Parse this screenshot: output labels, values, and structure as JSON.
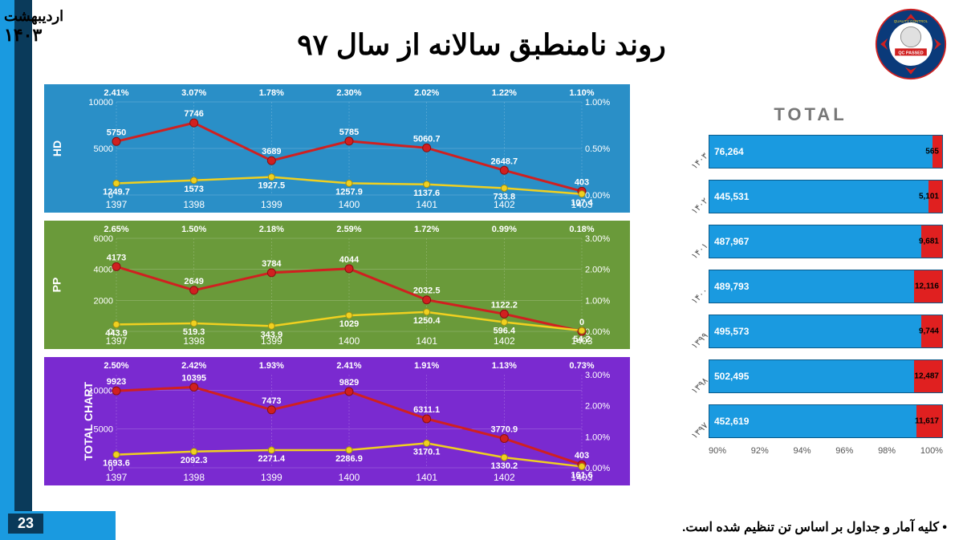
{
  "date_month": "اردیبهشت",
  "date_year": "۱۴۰۳",
  "title": "روند نامنطبق سالانه از سال ۹۷",
  "slide_number": "23",
  "footer": "• کلیه آمار و جداول بر اساس تن تنظیم شده است.",
  "bars_title": "TOTAL",
  "logo_text_top": "QUALITY CONTROL",
  "logo_text_mid": "QC PASSED",
  "colors": {
    "blue_bg": "#2a8fc7",
    "green_bg": "#6a9a3a",
    "purple_bg": "#7a2ad0",
    "red_line": "#d02020",
    "yellow_line": "#f0d020",
    "bar_blue": "#1a9ae0",
    "bar_red": "#e02020"
  },
  "x_categories": [
    "1397",
    "1398",
    "1399",
    "1400",
    "1401",
    "1402",
    "1403"
  ],
  "hd": {
    "label": "HD",
    "y_left": [
      0,
      5000,
      10000
    ],
    "y_right": [
      "0.00%",
      "0.50%",
      "1.00%"
    ],
    "pct": [
      2.41,
      3.07,
      1.78,
      2.3,
      2.02,
      1.22,
      1.1
    ],
    "pct_str": [
      "2.41%",
      "3.07%",
      "1.78%",
      "2.30%",
      "2.02%",
      "1.22%",
      "1.10%"
    ],
    "red": [
      5750,
      7746,
      3689,
      5785,
      5060.7,
      2648.7,
      403
    ],
    "yellow": [
      1249.7,
      1573,
      1927.5,
      1257.9,
      1137.6,
      733.8,
      107.4
    ]
  },
  "pp": {
    "label": "PP",
    "y_left": [
      0,
      2000,
      4000,
      6000
    ],
    "y_right": [
      "0.00%",
      "1.00%",
      "2.00%",
      "3.00%"
    ],
    "pct": [
      2.65,
      1.5,
      2.18,
      2.59,
      1.72,
      0.99,
      0.18
    ],
    "pct_str": [
      "2.65%",
      "1.50%",
      "2.18%",
      "2.59%",
      "1.72%",
      "0.99%",
      "0.18%"
    ],
    "red": [
      4173,
      2649,
      3784,
      4044,
      2032.5,
      1122.2,
      0
    ],
    "yellow": [
      443.9,
      519.3,
      343.9,
      1029,
      1250.4,
      596.4,
      54.2
    ]
  },
  "total": {
    "label": "TOTAL CHART",
    "y_left": [
      0,
      5000,
      10000
    ],
    "y_right": [
      "0.00%",
      "1.00%",
      "2.00%",
      "3.00%"
    ],
    "pct": [
      2.5,
      2.42,
      1.93,
      2.41,
      1.91,
      1.13,
      0.73
    ],
    "pct_str": [
      "2.50%",
      "2.42%",
      "1.93%",
      "2.41%",
      "1.91%",
      "1.13%",
      "0.73%"
    ],
    "red": [
      9923,
      10395,
      7473,
      9829,
      6311.1,
      3770.9,
      403
    ],
    "yellow": [
      1693.6,
      2092.3,
      2271.4,
      2286.9,
      3170.1,
      1330.2,
      161.6
    ]
  },
  "bars": {
    "x_axis": [
      "90%",
      "92%",
      "94%",
      "96%",
      "98%",
      "100%"
    ],
    "rows": [
      {
        "year": "۱۴۰۳",
        "blue_val": "76,264",
        "red_val": "565",
        "red_pct": 4
      },
      {
        "year": "۱۴۰۲",
        "blue_val": "445,531",
        "red_val": "5,101",
        "red_pct": 6
      },
      {
        "year": "۱۴۰۱",
        "blue_val": "487,967",
        "red_val": "9,681",
        "red_pct": 9
      },
      {
        "year": "۱۴۰۰",
        "blue_val": "489,793",
        "red_val": "12,116",
        "red_pct": 12
      },
      {
        "year": "۱۳۹۹",
        "blue_val": "495,573",
        "red_val": "9,744",
        "red_pct": 9
      },
      {
        "year": "۱۳۹۸",
        "blue_val": "502,495",
        "red_val": "12,487",
        "red_pct": 12
      },
      {
        "year": "۱۳۹۷",
        "blue_val": "452,619",
        "red_val": "11,617",
        "red_pct": 11
      }
    ]
  }
}
